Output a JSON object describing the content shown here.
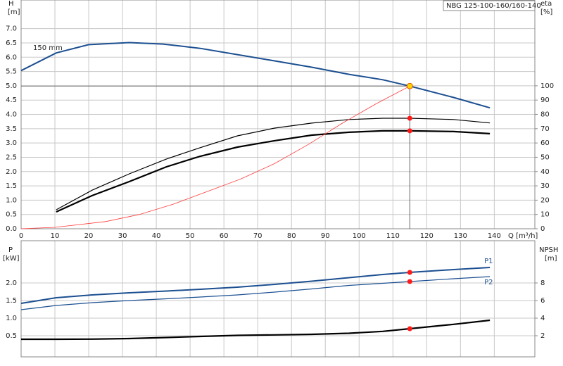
{
  "chart_data": [
    {
      "type": "line",
      "title": "NBG 125-100-160/160-140",
      "y_label": "H",
      "y_unit": "[m]",
      "y2_label": "eta",
      "y2_unit": "[%]",
      "x_label": "Q [m³/h]",
      "annotation": "150 mm",
      "xlim": [
        0,
        152
      ],
      "xticks": [
        0,
        10,
        20,
        30,
        40,
        50,
        60,
        70,
        80,
        90,
        100,
        110,
        120,
        130,
        140
      ],
      "ylim": [
        0,
        8
      ],
      "yticks": [
        {
          "value": 0,
          "label": "0.0"
        },
        0.5,
        {
          "value": 1,
          "label": "1.0"
        },
        1.5,
        {
          "value": 2,
          "label": "2.0"
        },
        2.5,
        {
          "value": 3,
          "label": "3.0"
        },
        3.5,
        {
          "value": 4,
          "label": "4.0"
        },
        4.5,
        {
          "value": 5,
          "label": "5.0"
        },
        5.5,
        {
          "value": 6,
          "label": "6.0"
        },
        6.5,
        {
          "value": 7,
          "label": "7.0"
        }
      ],
      "y2lim": [
        0,
        160
      ],
      "y2ticks": [
        0,
        10,
        20,
        30,
        40,
        50,
        60,
        70,
        80,
        90,
        100
      ],
      "grid": true,
      "duty_point": {
        "x": 115,
        "y": 4.99
      },
      "series": [
        {
          "color": "#1c4f91",
          "width": 2,
          "x": [
            0,
            10.4,
            20,
            32,
            42,
            53,
            64,
            75,
            86,
            97,
            107,
            115,
            128,
            138.7
          ],
          "values": [
            5.53,
            6.15,
            6.44,
            6.51,
            6.46,
            6.31,
            6.09,
            5.87,
            5.65,
            5.4,
            5.21,
            4.99,
            4.59,
            4.23
          ]
        },
        {
          "color": "#000000",
          "width": 1.2,
          "axis": "y2",
          "marked": true,
          "x": [
            10.4,
            21,
            32,
            43,
            53,
            64,
            75,
            86,
            97,
            107,
            115,
            128,
            138.7
          ],
          "values": [
            13.3,
            27,
            38.4,
            48.8,
            56.7,
            65,
            70.4,
            73.9,
            76.4,
            77.3,
            77.3,
            76.4,
            74
          ]
        },
        {
          "color": "#000000",
          "width": 2.2,
          "axis": "y2",
          "marked": true,
          "x": [
            10.4,
            21,
            32,
            43,
            53,
            64,
            75,
            86,
            97,
            107,
            115,
            128,
            138.7
          ],
          "values": [
            11.8,
            23.2,
            33,
            43.3,
            50.7,
            57.1,
            61.6,
            65.5,
            67.5,
            68.5,
            68.5,
            68,
            66.5
          ]
        },
        {
          "color": "#ff3c3c",
          "width": 0.8,
          "x": [
            0,
            10,
            25,
            35,
            45,
            55,
            65,
            75,
            85,
            95,
            105,
            115
          ],
          "values": [
            0,
            0.05,
            0.25,
            0.5,
            0.86,
            1.3,
            1.74,
            2.28,
            2.95,
            3.69,
            4.37,
            4.99
          ]
        }
      ]
    },
    {
      "type": "line",
      "y_label": "P",
      "y_unit": "[kW]",
      "y2_label": "NPSH",
      "y2_unit": "[m]",
      "xlim": [
        0,
        152
      ],
      "ylim": [
        -0.1,
        3.2
      ],
      "yticks": [
        0.5,
        {
          "value": 1,
          "label": "1.0"
        },
        1.5,
        {
          "value": 2,
          "label": "2.0"
        }
      ],
      "y2lim": [
        -0.4,
        12.8
      ],
      "y2ticks": [
        2,
        4,
        6,
        8
      ],
      "grid": true,
      "duty_x": 115,
      "series": [
        {
          "name": "P1",
          "color": "#1c4f91",
          "width": 2,
          "marked": true,
          "x": [
            0,
            10.4,
            21,
            32,
            43,
            53,
            64,
            75,
            86,
            97,
            107,
            115,
            128,
            138.7
          ],
          "values": [
            1.42,
            1.58,
            1.66,
            1.72,
            1.77,
            1.82,
            1.88,
            1.96,
            2.05,
            2.15,
            2.24,
            2.3,
            2.38,
            2.44
          ]
        },
        {
          "name": "P2",
          "color": "#1c4f91",
          "width": 1.2,
          "marked": true,
          "x": [
            0,
            10.4,
            21,
            32,
            43,
            53,
            64,
            75,
            86,
            97,
            107,
            115,
            128,
            138.7
          ],
          "values": [
            1.24,
            1.36,
            1.44,
            1.5,
            1.55,
            1.6,
            1.66,
            1.74,
            1.83,
            1.93,
            1.99,
            2.04,
            2.12,
            2.18
          ]
        },
        {
          "color": "#000000",
          "width": 2.2,
          "axis": "y2",
          "marked": true,
          "x": [
            0,
            10.4,
            21,
            32,
            43,
            53,
            64,
            75,
            86,
            97,
            107,
            115,
            128,
            138.7
          ],
          "values": [
            1.6,
            1.6,
            1.62,
            1.68,
            1.8,
            1.92,
            2.04,
            2.1,
            2.16,
            2.28,
            2.5,
            2.8,
            3.3,
            3.76
          ]
        }
      ]
    }
  ]
}
